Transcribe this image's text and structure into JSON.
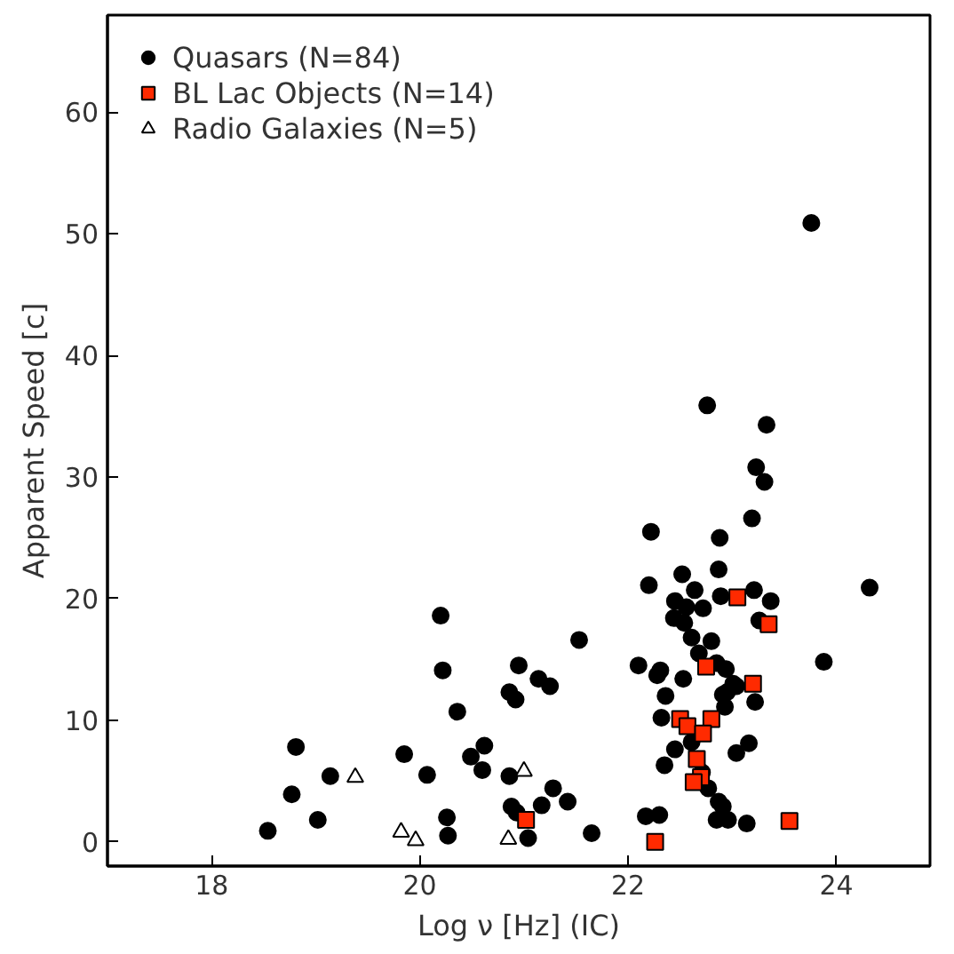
{
  "chart_data": {
    "type": "scatter",
    "xlabel": "Log ν [Hz] (IC)",
    "ylabel": "Apparent Speed [c]",
    "xlim": [
      17,
      24.9
    ],
    "ylim": [
      -2,
      68
    ],
    "xticks": [
      18,
      20,
      22,
      24
    ],
    "yticks": [
      0,
      10,
      20,
      30,
      40,
      50,
      60
    ],
    "grid": false,
    "legend": "top left",
    "series": [
      {
        "name": "Quasars (N=84)",
        "color": "#000000",
        "marker": "circle",
        "x": [
          18.54,
          18.81,
          18.77,
          19.02,
          19.14,
          19.85,
          20.07,
          20.2,
          20.22,
          20.36,
          20.26,
          20.27,
          20.49,
          20.6,
          20.62,
          20.95,
          20.86,
          20.92,
          21.14,
          21.25,
          21.53,
          20.86,
          20.88,
          20.93,
          21.04,
          21.17,
          21.28,
          21.42,
          21.65,
          22.1,
          22.2,
          22.17,
          22.3,
          22.28,
          22.31,
          22.36,
          22.32,
          22.45,
          22.35,
          22.76,
          23.33,
          23.23,
          23.31,
          23.19,
          22.22,
          22.88,
          22.87,
          22.52,
          22.64,
          22.89,
          23.21,
          23.37,
          22.45,
          22.56,
          22.72,
          22.44,
          22.54,
          23.26,
          22.61,
          22.8,
          22.68,
          22.85,
          22.94,
          22.53,
          23.01,
          23.04,
          22.95,
          22.91,
          23.22,
          22.93,
          22.61,
          23.16,
          23.04,
          22.71,
          22.77,
          22.87,
          22.91,
          22.85,
          22.96,
          23.14,
          23.88,
          24.32,
          23.76
        ],
        "values": [
          0.9,
          7.8,
          3.9,
          1.8,
          5.4,
          7.2,
          5.5,
          18.6,
          14.1,
          10.7,
          2.0,
          0.5,
          7.0,
          5.9,
          7.9,
          14.5,
          12.3,
          11.7,
          13.4,
          12.8,
          16.6,
          5.4,
          2.9,
          2.4,
          0.3,
          3.0,
          4.4,
          3.3,
          0.7,
          14.5,
          21.1,
          2.1,
          2.2,
          13.7,
          14.1,
          12.0,
          10.2,
          7.6,
          6.3,
          35.9,
          34.3,
          30.8,
          29.6,
          26.6,
          25.5,
          25.0,
          22.4,
          22.0,
          20.7,
          20.2,
          20.7,
          19.8,
          19.8,
          19.3,
          19.2,
          18.4,
          18.0,
          18.2,
          16.8,
          16.5,
          15.5,
          14.7,
          14.2,
          13.4,
          13.0,
          12.8,
          12.3,
          12.1,
          11.5,
          11.1,
          8.2,
          8.1,
          7.3,
          5.7,
          4.4,
          3.3,
          2.9,
          1.8,
          1.8,
          1.5,
          14.8,
          20.9,
          50.9
        ]
      },
      {
        "name": "BL Lac Objects (N=14)",
        "color": "#ff2a00",
        "marker": "square",
        "x": [
          21.02,
          22.26,
          23.05,
          23.35,
          22.75,
          23.2,
          22.5,
          22.57,
          22.8,
          22.72,
          22.66,
          22.7,
          22.63,
          23.55
        ],
        "values": [
          1.8,
          0.0,
          20.1,
          17.9,
          14.4,
          13.0,
          10.1,
          9.5,
          10.1,
          8.9,
          6.8,
          5.3,
          4.9,
          1.7
        ]
      },
      {
        "name": "Radio Galaxies (N=5)",
        "color": "#ffffff",
        "marker": "triangle",
        "x": [
          19.38,
          19.82,
          19.96,
          21.0,
          20.85
        ],
        "values": [
          5.3,
          0.8,
          0.1,
          5.8,
          0.2
        ]
      }
    ]
  }
}
